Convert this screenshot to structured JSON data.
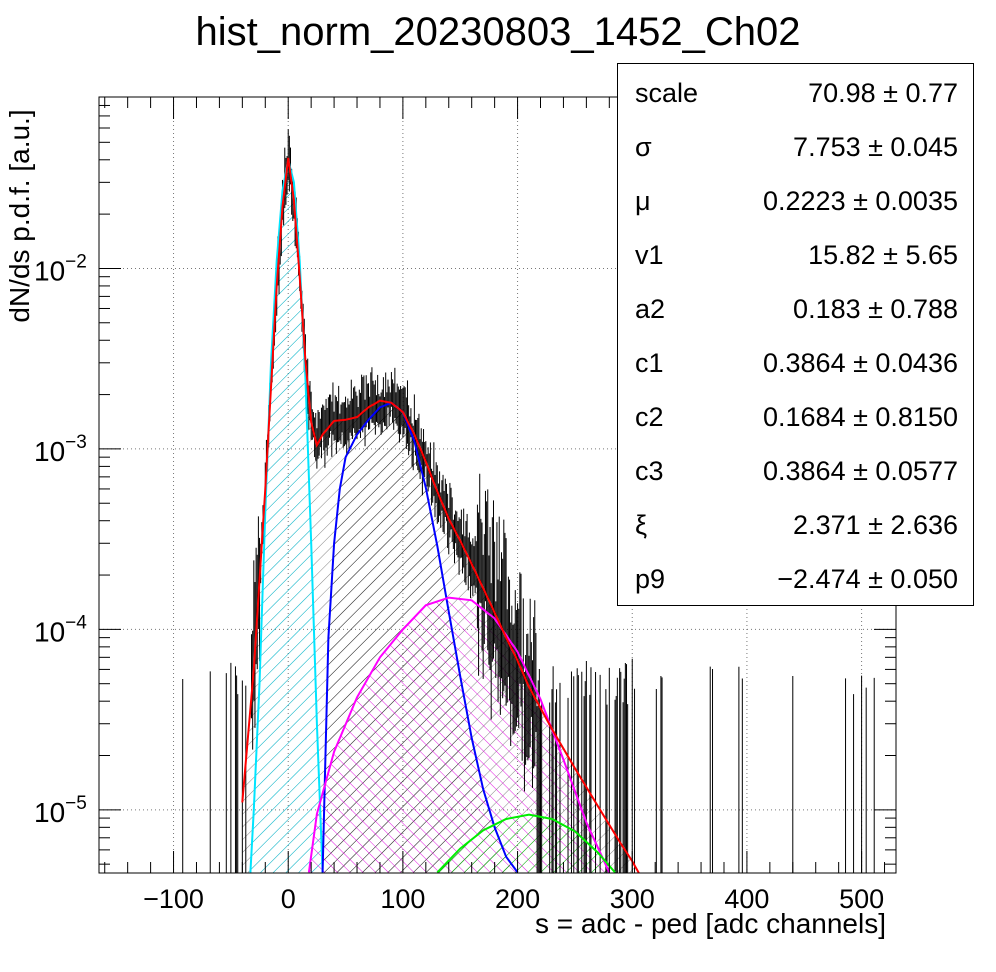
{
  "chart_data": {
    "type": "line",
    "title": "hist_norm_20230803_1452_Ch02",
    "xlabel": "s = adc - ped [adc channels]",
    "ylabel": "dN/ds p.d.f. [a.u.]",
    "xlim": [
      -165,
      530
    ],
    "ylim_log10": [
      -5.35,
      -1.05
    ],
    "yscale": "log",
    "grid": true,
    "x_ticks": [
      -100,
      0,
      100,
      200,
      300,
      400,
      500
    ],
    "y_ticks": [
      {
        "base": "10",
        "exp": "−2",
        "log": -2
      },
      {
        "base": "10",
        "exp": "−3",
        "log": -3
      },
      {
        "base": "10",
        "exp": "−4",
        "log": -4
      },
      {
        "base": "10",
        "exp": "−5",
        "log": -5
      }
    ],
    "series": [
      {
        "color": "#ff0000",
        "x": [
          -40,
          -30,
          -20,
          -10,
          -5,
          0,
          5,
          10,
          15,
          20,
          25,
          30,
          40,
          50,
          60,
          70,
          80,
          90,
          100,
          110,
          120,
          130,
          140,
          150,
          160,
          175,
          190,
          200,
          210,
          230,
          250,
          270,
          290,
          300,
          310
        ],
        "y": [
          1.1e-05,
          6e-05,
          0.0006,
          0.008,
          0.022,
          0.041,
          0.024,
          0.009,
          0.0031,
          0.0014,
          0.00105,
          0.0012,
          0.00143,
          0.00145,
          0.0015,
          0.0017,
          0.00185,
          0.0018,
          0.0016,
          0.0012,
          0.00085,
          0.00058,
          0.00041,
          0.00031,
          0.00023,
          0.000145,
          9e-05,
          6.7e-05,
          4.8e-05,
          2.8e-05,
          1.7e-05,
          1.05e-05,
          6.5e-06,
          5.2e-06,
          4e-06
        ]
      },
      {
        "color": "#00e5ff",
        "x": [
          -33,
          -30,
          -25,
          -20,
          -15,
          -10,
          -5,
          0,
          5,
          10,
          15,
          20,
          25,
          30
        ],
        "y": [
          4.5e-06,
          1e-05,
          5e-05,
          0.00045,
          0.003,
          0.011,
          0.027,
          0.04,
          0.03,
          0.011,
          0.0025,
          0.0003,
          3e-05,
          4.5e-06
        ]
      },
      {
        "color": "#0000ff",
        "x": [
          30,
          32,
          35,
          40,
          45,
          50,
          60,
          70,
          80,
          90,
          100,
          110,
          120,
          130,
          140,
          150,
          160,
          170,
          180,
          190,
          200
        ],
        "y": [
          4.5e-06,
          1.5e-05,
          9e-05,
          0.0003,
          0.0006,
          0.0009,
          0.0012,
          0.00145,
          0.0017,
          0.0018,
          0.0016,
          0.0011,
          0.00061,
          0.00029,
          0.000125,
          5.5e-05,
          2.5e-05,
          1.3e-05,
          8e-06,
          5.5e-06,
          4.5e-06
        ]
      },
      {
        "color": "#ff00ff",
        "x": [
          18,
          25,
          40,
          60,
          80,
          100,
          120,
          140,
          160,
          180,
          200,
          220,
          240,
          260,
          280
        ],
        "y": [
          4.5e-06,
          9.5e-06,
          2.1e-05,
          4.2e-05,
          7e-05,
          0.0001,
          0.000136,
          0.00015,
          0.000145,
          0.000115,
          7.5e-05,
          4.1e-05,
          1.9e-05,
          8.5e-06,
          4.5e-06
        ]
      },
      {
        "color": "#00ee00",
        "x": [
          130,
          150,
          170,
          190,
          210,
          230,
          250,
          270,
          285
        ],
        "y": [
          4.5e-06,
          6.1e-06,
          7.7e-06,
          8.9e-06,
          9.4e-06,
          8.9e-06,
          7.6e-06,
          5.8e-06,
          4.5e-06
        ]
      }
    ],
    "fit_params": [
      {
        "name": "scale",
        "value": "70.98 ± 0.77"
      },
      {
        "name": "σ",
        "value": "7.753 ± 0.045"
      },
      {
        "name": "μ",
        "value": "0.2223 ± 0.0035"
      },
      {
        "name": "v1",
        "value": "15.82 ± 5.65"
      },
      {
        "name": "a2",
        "value": "0.183 ± 0.788"
      },
      {
        "name": "c1",
        "value": "0.3864 ± 0.0436"
      },
      {
        "name": "c2",
        "value": "0.1684 ± 0.8150"
      },
      {
        "name": "c3",
        "value": "0.3864 ± 0.0577"
      },
      {
        "name": "ξ",
        "value": "2.371 ± 2.636"
      },
      {
        "name": "p9",
        "value": "−2.474 ± 0.050"
      }
    ]
  }
}
